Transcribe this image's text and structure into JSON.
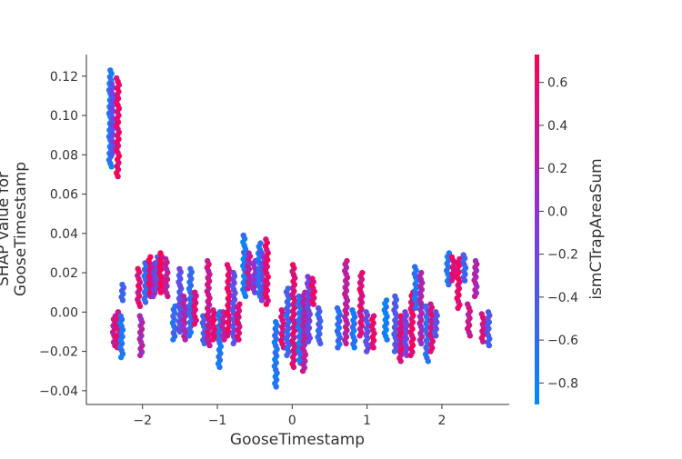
{
  "chart_data": {
    "type": "scatter",
    "title": "",
    "xlabel": "GooseTimestamp",
    "ylabel_lines": [
      "SHAP value for",
      "GooseTimestamp"
    ],
    "xlim": [
      -2.75,
      2.9
    ],
    "ylim": [
      -0.047,
      0.131
    ],
    "x_ticks": [
      -2,
      -1,
      0,
      1,
      2
    ],
    "x_tick_labels": [
      "−2",
      "−1",
      "0",
      "1",
      "2"
    ],
    "y_ticks": [
      -0.04,
      -0.02,
      0.0,
      0.02,
      0.04,
      0.06,
      0.08,
      0.1,
      0.12
    ],
    "y_tick_labels": [
      "−0.04",
      "−0.02",
      "0.00",
      "0.02",
      "0.04",
      "0.06",
      "0.08",
      "0.10",
      "0.12"
    ],
    "grid": false,
    "colorbar": {
      "label": "ismCTrapAreaSum",
      "min": -0.9,
      "max": 0.73,
      "ticks": [
        -0.8,
        -0.6,
        -0.4,
        -0.2,
        0.0,
        0.2,
        0.4,
        0.6
      ],
      "tick_labels": [
        "−0.8",
        "−0.6",
        "−0.4",
        "−0.2",
        "0.0",
        "0.2",
        "0.4",
        "0.6"
      ],
      "colors": [
        "#008afb",
        "#7f3ae0",
        "#ff0052"
      ]
    },
    "clusters": [
      {
        "x": -2.43,
        "y_min": 0.074,
        "y_max": 0.123,
        "c": -0.75
      },
      {
        "x": -2.4,
        "y_min": 0.08,
        "y_max": 0.116,
        "c": -0.25
      },
      {
        "x": -2.33,
        "y_min": 0.069,
        "y_max": 0.119,
        "c": 0.6
      },
      {
        "x": -2.38,
        "y_min": -0.017,
        "y_max": -0.002,
        "c": 0.4
      },
      {
        "x": -2.32,
        "y_min": -0.018,
        "y_max": 0.0,
        "c": 0.5
      },
      {
        "x": -2.28,
        "y_min": -0.023,
        "y_max": -0.002,
        "c": -0.7
      },
      {
        "x": -2.27,
        "y_min": 0.006,
        "y_max": 0.014,
        "c": -0.5
      },
      {
        "x": -2.05,
        "y_min": 0.003,
        "y_max": 0.022,
        "c": 0.5
      },
      {
        "x": -2.02,
        "y_min": -0.022,
        "y_max": -0.002,
        "c": 0.2
      },
      {
        "x": -1.96,
        "y_min": 0.005,
        "y_max": 0.025,
        "c": -0.6
      },
      {
        "x": -1.9,
        "y_min": 0.008,
        "y_max": 0.028,
        "c": 0.6
      },
      {
        "x": -1.84,
        "y_min": 0.008,
        "y_max": 0.025,
        "c": 0.0
      },
      {
        "x": -1.8,
        "y_min": 0.012,
        "y_max": 0.028,
        "c": -0.4
      },
      {
        "x": -1.76,
        "y_min": 0.01,
        "y_max": 0.03,
        "c": 0.7
      },
      {
        "x": -1.68,
        "y_min": 0.008,
        "y_max": 0.027,
        "c": 0.3
      },
      {
        "x": -1.58,
        "y_min": -0.014,
        "y_max": 0.003,
        "c": -0.6
      },
      {
        "x": -1.5,
        "y_min": -0.01,
        "y_max": 0.022,
        "c": -0.3
      },
      {
        "x": -1.44,
        "y_min": -0.014,
        "y_max": 0.008,
        "c": 0.2
      },
      {
        "x": -1.36,
        "y_min": -0.012,
        "y_max": 0.022,
        "c": -0.6
      },
      {
        "x": -1.3,
        "y_min": -0.006,
        "y_max": 0.01,
        "c": 0.5
      },
      {
        "x": -1.18,
        "y_min": -0.016,
        "y_max": -0.002,
        "c": -0.5
      },
      {
        "x": -1.12,
        "y_min": -0.017,
        "y_max": 0.026,
        "c": 0.4
      },
      {
        "x": -1.05,
        "y_min": -0.014,
        "y_max": 0.001,
        "c": 0.6
      },
      {
        "x": -0.97,
        "y_min": -0.028,
        "y_max": 0.0,
        "c": -0.7
      },
      {
        "x": -0.92,
        "y_min": -0.014,
        "y_max": 0.0,
        "c": 0.3
      },
      {
        "x": -0.85,
        "y_min": -0.012,
        "y_max": 0.024,
        "c": 0.6
      },
      {
        "x": -0.78,
        "y_min": -0.016,
        "y_max": 0.02,
        "c": -0.3
      },
      {
        "x": -0.72,
        "y_min": -0.014,
        "y_max": 0.004,
        "c": 0.5
      },
      {
        "x": -0.64,
        "y_min": 0.008,
        "y_max": 0.039,
        "c": -0.75
      },
      {
        "x": -0.58,
        "y_min": 0.012,
        "y_max": 0.03,
        "c": 0.3
      },
      {
        "x": -0.5,
        "y_min": 0.01,
        "y_max": 0.026,
        "c": 0.0
      },
      {
        "x": -0.44,
        "y_min": 0.008,
        "y_max": 0.035,
        "c": -0.7
      },
      {
        "x": -0.39,
        "y_min": 0.006,
        "y_max": 0.03,
        "c": -0.2
      },
      {
        "x": -0.34,
        "y_min": 0.004,
        "y_max": 0.037,
        "c": 0.6
      },
      {
        "x": -0.22,
        "y_min": -0.038,
        "y_max": -0.005,
        "c": -0.7
      },
      {
        "x": -0.13,
        "y_min": -0.018,
        "y_max": 0.001,
        "c": 0.5
      },
      {
        "x": -0.06,
        "y_min": -0.022,
        "y_max": 0.012,
        "c": -0.5
      },
      {
        "x": 0.02,
        "y_min": -0.028,
        "y_max": 0.024,
        "c": 0.5
      },
      {
        "x": 0.1,
        "y_min": -0.026,
        "y_max": 0.008,
        "c": -0.7
      },
      {
        "x": 0.16,
        "y_min": -0.03,
        "y_max": 0.01,
        "c": 0.3
      },
      {
        "x": 0.22,
        "y_min": -0.015,
        "y_max": 0.018,
        "c": -0.2
      },
      {
        "x": 0.28,
        "y_min": 0.004,
        "y_max": 0.017,
        "c": 0.6
      },
      {
        "x": 0.36,
        "y_min": -0.016,
        "y_max": 0.002,
        "c": -0.5
      },
      {
        "x": 0.62,
        "y_min": -0.018,
        "y_max": 0.002,
        "c": -0.6
      },
      {
        "x": 0.72,
        "y_min": -0.016,
        "y_max": 0.026,
        "c": 0.3
      },
      {
        "x": 0.82,
        "y_min": -0.018,
        "y_max": 0.001,
        "c": -0.7
      },
      {
        "x": 0.92,
        "y_min": -0.012,
        "y_max": 0.02,
        "c": 0.5
      },
      {
        "x": 1.0,
        "y_min": -0.02,
        "y_max": 0.0,
        "c": -0.3
      },
      {
        "x": 1.08,
        "y_min": -0.018,
        "y_max": -0.002,
        "c": 0.6
      },
      {
        "x": 1.25,
        "y_min": -0.014,
        "y_max": 0.006,
        "c": -0.8
      },
      {
        "x": 1.38,
        "y_min": -0.02,
        "y_max": 0.008,
        "c": -0.4
      },
      {
        "x": 1.45,
        "y_min": -0.025,
        "y_max": -0.002,
        "c": 0.5
      },
      {
        "x": 1.52,
        "y_min": -0.022,
        "y_max": 0.0,
        "c": -0.2
      },
      {
        "x": 1.6,
        "y_min": -0.022,
        "y_max": 0.01,
        "c": 0.6
      },
      {
        "x": 1.65,
        "y_min": 0.002,
        "y_max": 0.023,
        "c": -0.7
      },
      {
        "x": 1.72,
        "y_min": -0.016,
        "y_max": 0.02,
        "c": 0.2
      },
      {
        "x": 1.8,
        "y_min": -0.025,
        "y_max": 0.003,
        "c": -0.6
      },
      {
        "x": 1.86,
        "y_min": -0.02,
        "y_max": 0.004,
        "c": 0.5
      },
      {
        "x": 1.92,
        "y_min": -0.012,
        "y_max": 0.0,
        "c": -0.3
      },
      {
        "x": 2.08,
        "y_min": 0.014,
        "y_max": 0.03,
        "c": -0.7
      },
      {
        "x": 2.15,
        "y_min": 0.016,
        "y_max": 0.028,
        "c": 0.5
      },
      {
        "x": 2.22,
        "y_min": 0.002,
        "y_max": 0.027,
        "c": 0.6
      },
      {
        "x": 2.3,
        "y_min": 0.016,
        "y_max": 0.029,
        "c": -0.5
      },
      {
        "x": 2.36,
        "y_min": -0.012,
        "y_max": 0.004,
        "c": 0.4
      },
      {
        "x": 2.45,
        "y_min": 0.008,
        "y_max": 0.026,
        "c": 0.2
      },
      {
        "x": 2.55,
        "y_min": -0.015,
        "y_max": -0.001,
        "c": 0.5
      },
      {
        "x": 2.62,
        "y_min": -0.017,
        "y_max": 0.0,
        "c": -0.4
      }
    ]
  }
}
